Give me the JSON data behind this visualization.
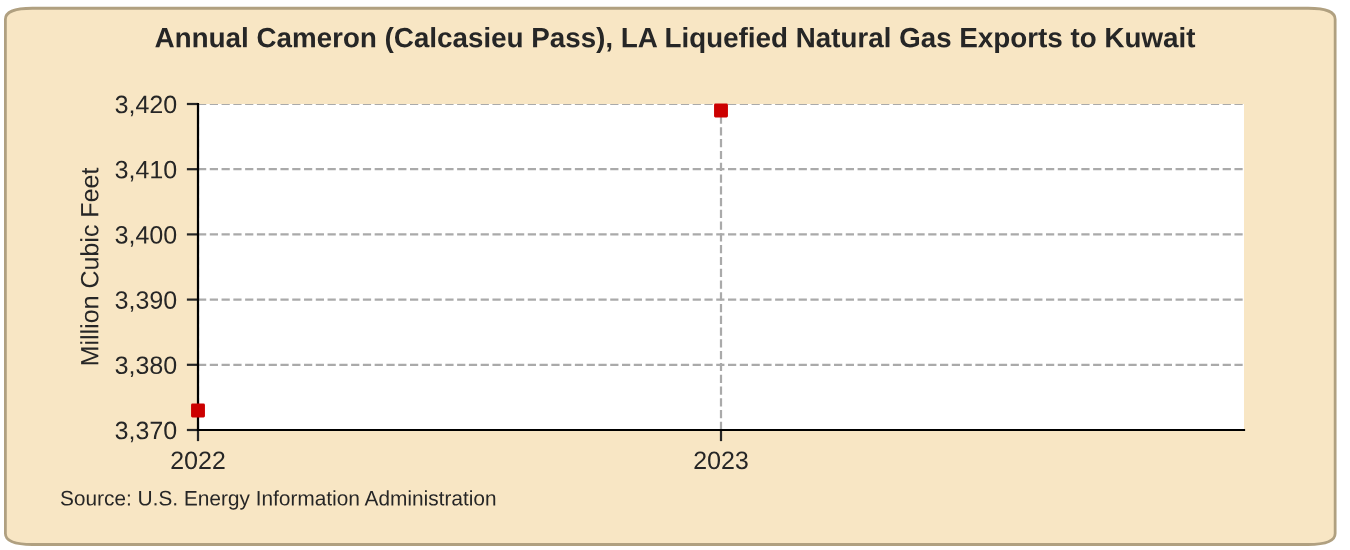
{
  "chart_data": {
    "type": "scatter",
    "title": "Annual Cameron (Calcasieu Pass), LA Liquefied Natural Gas Exports to Kuwait",
    "ylabel": "Million Cubic Feet",
    "x": [
      2022,
      2023
    ],
    "series": [
      {
        "color": "#cc0000",
        "values": [
          3373,
          3419
        ]
      }
    ],
    "xlim": [
      2022,
      2024
    ],
    "xticks": [
      2022,
      2023
    ],
    "ylim": [
      3370,
      3420
    ],
    "yticks": [
      {
        "value": 3370,
        "label": "3,370"
      },
      {
        "value": 3380,
        "label": "3,380"
      },
      {
        "value": 3390,
        "label": "3,390"
      },
      {
        "value": 3400,
        "label": "3,400"
      },
      {
        "value": 3410,
        "label": "3,410"
      },
      {
        "value": 3420,
        "label": "3,420"
      }
    ],
    "grid": true,
    "marker": "square",
    "legend": false,
    "annotations": [
      "Source: U.S. Energy Information Administration"
    ]
  }
}
